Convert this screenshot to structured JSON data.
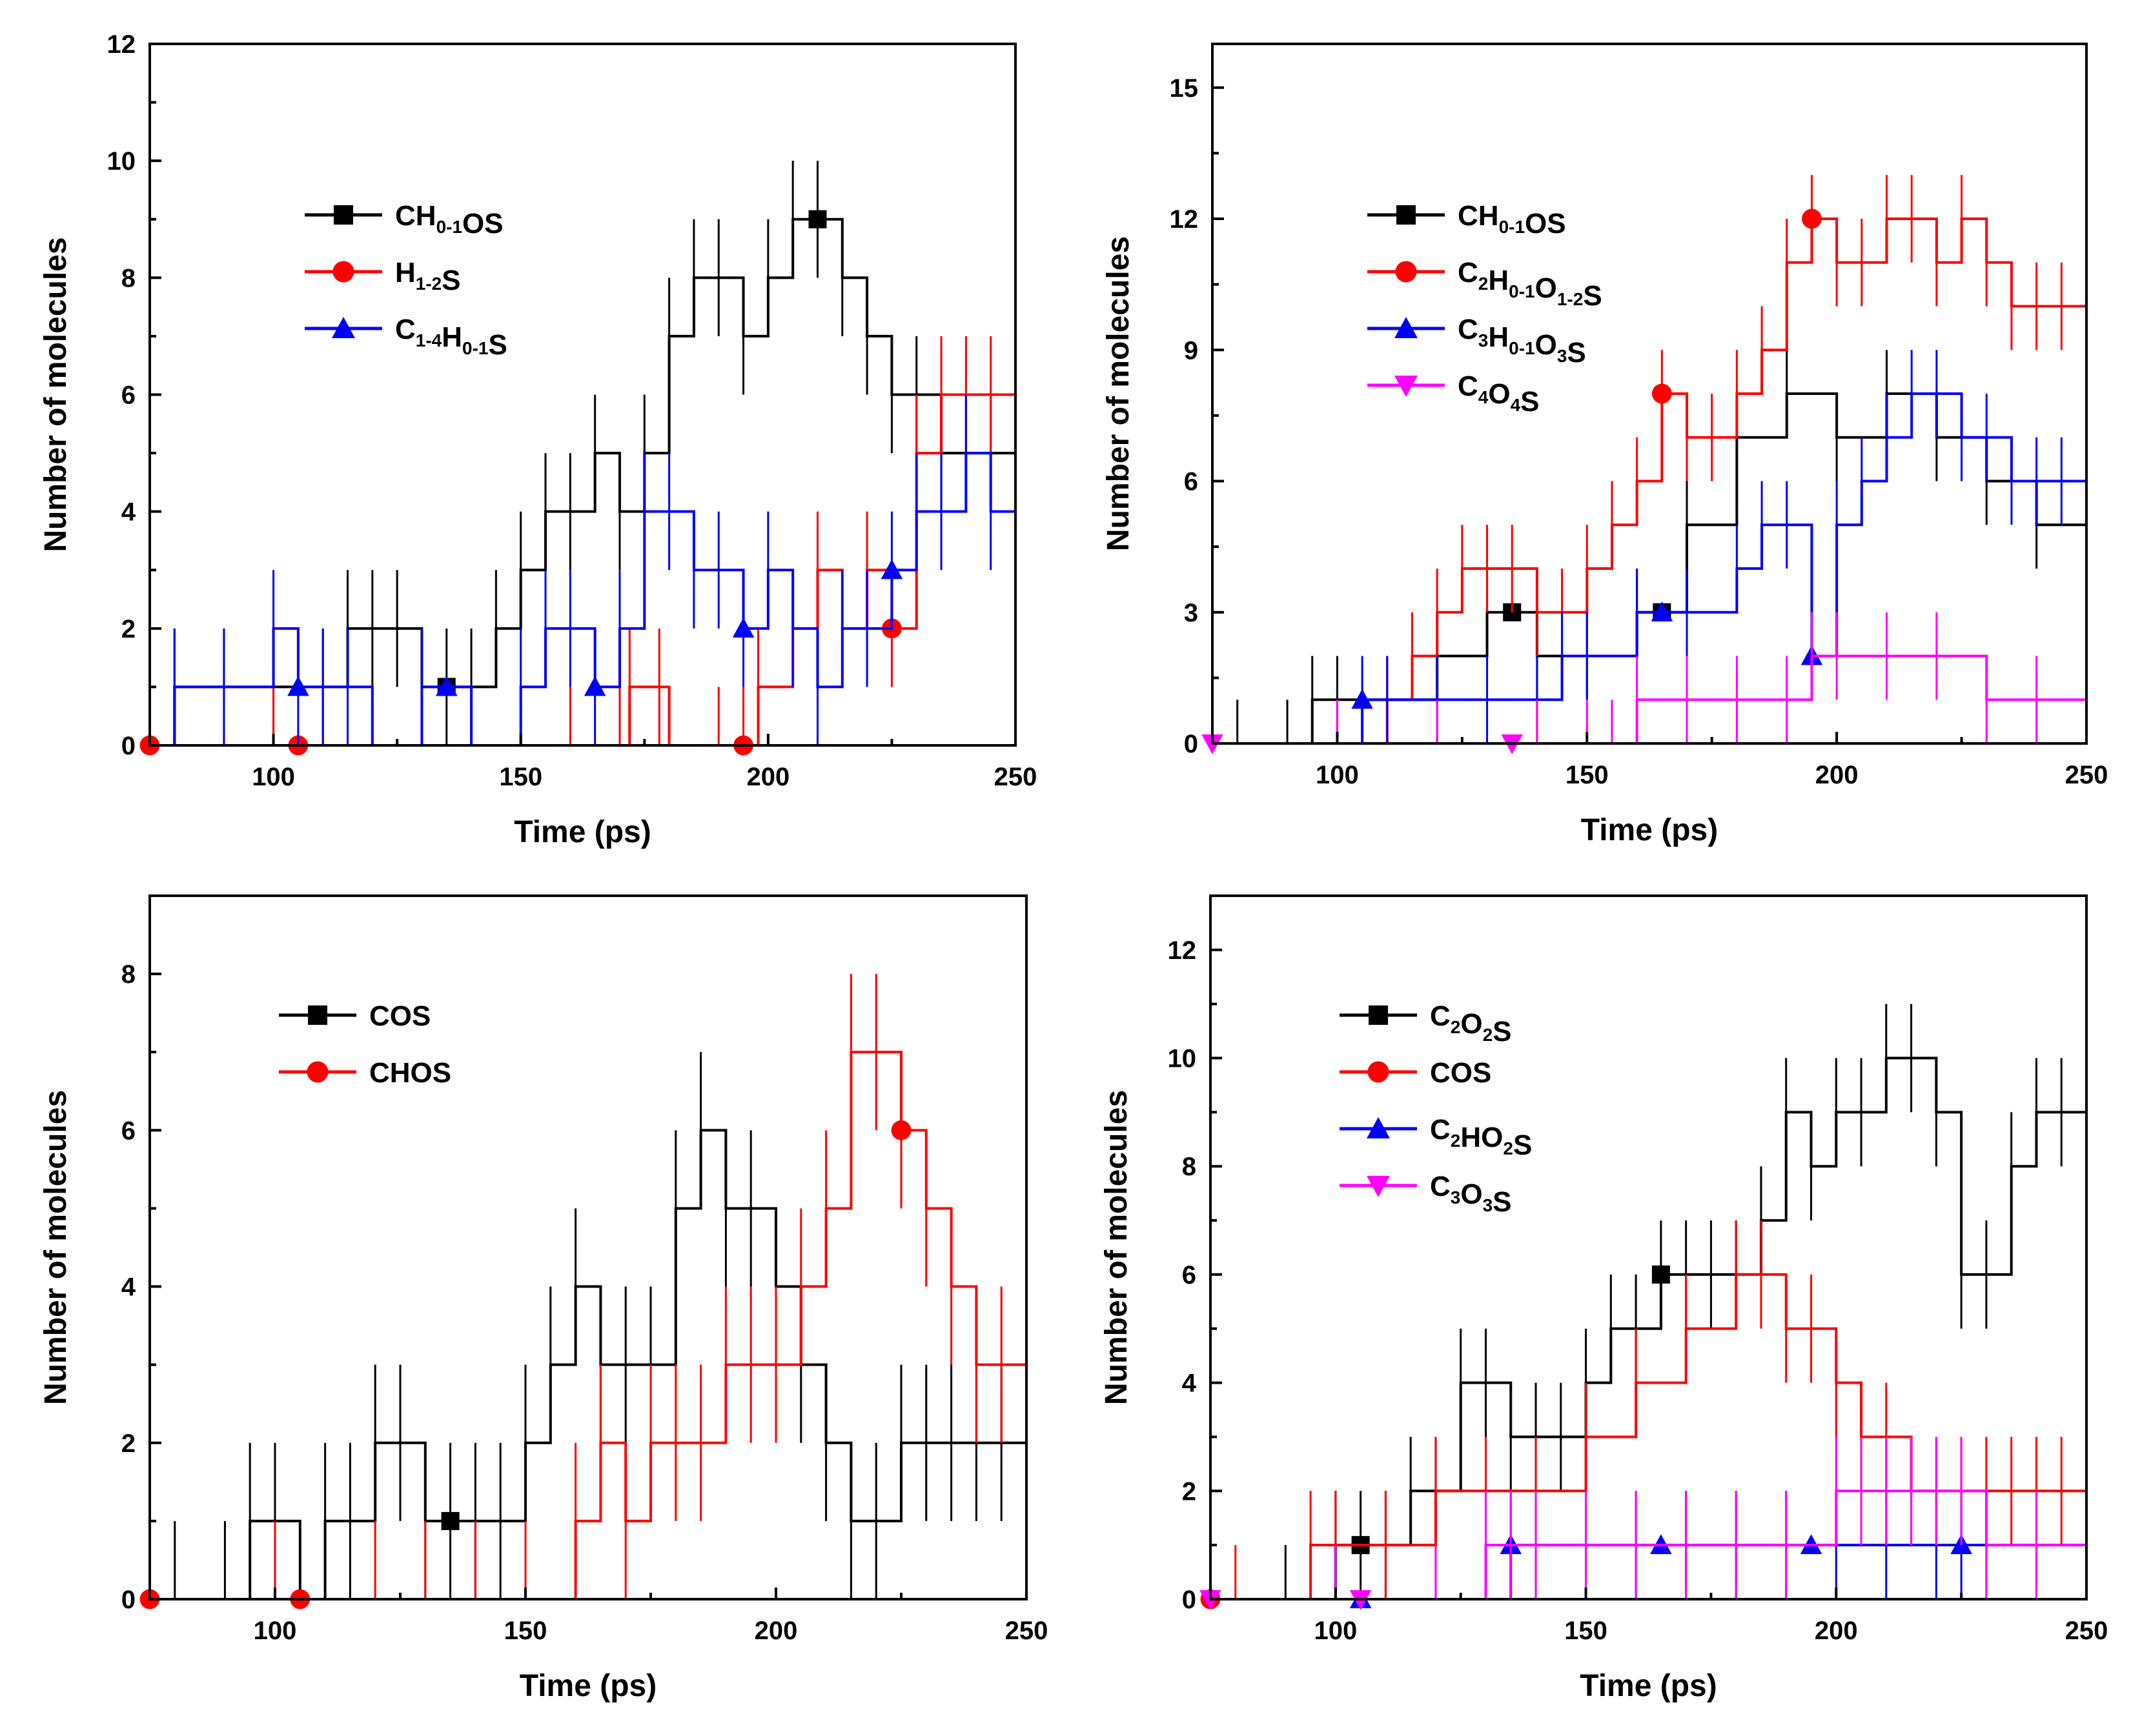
{
  "figure": {
    "description_free": true
  },
  "chart_data": [
    {
      "type": "line",
      "panel": "top-left",
      "xlabel": "Time (ps)",
      "ylabel": "Number of molecules",
      "xlim": [
        75,
        250
      ],
      "ylim": [
        0,
        12
      ],
      "xticks": [
        100,
        150,
        200,
        250
      ],
      "yticks": [
        0,
        2,
        4,
        6,
        8,
        10,
        12
      ],
      "legend_position": "upper-left",
      "series": [
        {
          "name": "CH0-1OS",
          "label_parts": [
            [
              "CH",
              ""
            ],
            [
              "0-1",
              "sub"
            ],
            [
              "OS",
              ""
            ]
          ],
          "color": "#000000",
          "marker": "square",
          "marker_x": [
            135,
            210
          ],
          "x": [
            75,
            80,
            90,
            100,
            110,
            115,
            120,
            125,
            130,
            135,
            140,
            145,
            150,
            155,
            160,
            165,
            170,
            175,
            180,
            185,
            190,
            195,
            200,
            205,
            210,
            215,
            220,
            225,
            230,
            235,
            240,
            245,
            250
          ],
          "y": [
            0,
            1,
            1,
            1,
            1,
            2,
            2,
            2,
            1,
            1,
            1,
            2,
            3,
            4,
            4,
            5,
            4,
            5,
            7,
            8,
            8,
            7,
            8,
            9,
            9,
            8,
            7,
            6,
            6,
            5,
            5,
            5,
            4
          ]
        },
        {
          "name": "H1-2S",
          "label_parts": [
            [
              "H",
              ""
            ],
            [
              "1-2",
              "sub"
            ],
            [
              "S",
              ""
            ]
          ],
          "color": "#ff0000",
          "marker": "circle",
          "marker_x": [
            75,
            105,
            195,
            225
          ],
          "x": [
            75,
            100,
            120,
            140,
            160,
            170,
            172,
            178,
            180,
            190,
            195,
            198,
            205,
            210,
            215,
            220,
            225,
            230,
            235,
            240,
            245,
            250
          ],
          "y": [
            0,
            0,
            0,
            0,
            0,
            0,
            1,
            1,
            0,
            0,
            0,
            1,
            2,
            3,
            2,
            3,
            2,
            5,
            6,
            6,
            6,
            5
          ]
        },
        {
          "name": "C1-4H0-1S",
          "label_parts": [
            [
              "C",
              ""
            ],
            [
              "1-4",
              "sub"
            ],
            [
              "H",
              ""
            ],
            [
              "0-1",
              "sub"
            ],
            [
              "S",
              ""
            ]
          ],
          "color": "#0000ff",
          "marker": "triangle-up",
          "marker_x": [
            105,
            135,
            165,
            195,
            225
          ],
          "x": [
            75,
            80,
            90,
            100,
            105,
            110,
            115,
            120,
            130,
            140,
            150,
            155,
            160,
            165,
            170,
            175,
            180,
            185,
            190,
            195,
            200,
            205,
            210,
            215,
            220,
            225,
            230,
            235,
            240,
            245,
            250
          ],
          "y": [
            0,
            1,
            1,
            2,
            1,
            1,
            1,
            0,
            1,
            0,
            1,
            2,
            2,
            1,
            2,
            4,
            4,
            3,
            3,
            2,
            3,
            2,
            1,
            2,
            2,
            3,
            4,
            4,
            5,
            4,
            4
          ]
        }
      ]
    },
    {
      "type": "line",
      "panel": "top-right",
      "xlabel": "Time (ps)",
      "ylabel": "Number of molecules",
      "xlim": [
        75,
        250
      ],
      "ylim": [
        0,
        16
      ],
      "xticks": [
        100,
        150,
        200,
        250
      ],
      "yticks": [
        0,
        3,
        6,
        9,
        12,
        15
      ],
      "legend_position": "upper-left",
      "series": [
        {
          "name": "CH0-1OS",
          "label_parts": [
            [
              "CH",
              ""
            ],
            [
              "0-1",
              "sub"
            ],
            [
              "OS",
              ""
            ]
          ],
          "color": "#000000",
          "marker": "square",
          "marker_x": [
            135,
            165
          ],
          "x": [
            75,
            80,
            90,
            95,
            100,
            110,
            120,
            130,
            140,
            150,
            160,
            170,
            180,
            190,
            200,
            210,
            220,
            230,
            240,
            250
          ],
          "y": [
            0,
            0,
            0,
            1,
            1,
            1,
            2,
            3,
            2,
            2,
            3,
            5,
            7,
            8,
            7,
            8,
            7,
            6,
            5,
            4
          ]
        },
        {
          "name": "C2H0-1O1-2S",
          "label_parts": [
            [
              "C",
              ""
            ],
            [
              "2",
              "sub"
            ],
            [
              "H",
              ""
            ],
            [
              "0-1",
              "sub"
            ],
            [
              "O",
              ""
            ],
            [
              "1-2",
              "sub"
            ],
            [
              "S",
              ""
            ]
          ],
          "color": "#ff0000",
          "marker": "circle",
          "marker_x": [
            165,
            195
          ],
          "x": [
            75,
            100,
            110,
            115,
            120,
            125,
            130,
            135,
            140,
            145,
            150,
            155,
            160,
            165,
            170,
            175,
            180,
            185,
            190,
            195,
            200,
            205,
            210,
            215,
            220,
            225,
            230,
            235,
            240,
            245,
            250
          ],
          "y": [
            0,
            0,
            1,
            2,
            3,
            4,
            4,
            4,
            3,
            3,
            4,
            5,
            6,
            8,
            7,
            7,
            8,
            9,
            11,
            12,
            11,
            11,
            12,
            12,
            11,
            12,
            11,
            10,
            10,
            10,
            10
          ]
        },
        {
          "name": "C3H0-1O3S",
          "label_parts": [
            [
              "C",
              ""
            ],
            [
              "3",
              "sub"
            ],
            [
              "H",
              ""
            ],
            [
              "0-1",
              "sub"
            ],
            [
              "O",
              ""
            ],
            [
              "3",
              "sub"
            ],
            [
              "S",
              ""
            ]
          ],
          "color": "#0000ff",
          "marker": "triangle-up",
          "marker_x": [
            105,
            165,
            195
          ],
          "x": [
            75,
            100,
            105,
            110,
            120,
            130,
            140,
            145,
            150,
            160,
            170,
            180,
            185,
            190,
            195,
            200,
            205,
            210,
            215,
            220,
            225,
            230,
            235,
            240,
            245,
            250
          ],
          "y": [
            0,
            0,
            1,
            1,
            1,
            1,
            1,
            2,
            2,
            3,
            3,
            4,
            5,
            5,
            2,
            5,
            6,
            7,
            8,
            8,
            7,
            7,
            6,
            6,
            6,
            5
          ]
        },
        {
          "name": "C4O4S",
          "label_parts": [
            [
              "C",
              ""
            ],
            [
              "4",
              "sub"
            ],
            [
              "O",
              ""
            ],
            [
              "4",
              "sub"
            ],
            [
              "S",
              ""
            ]
          ],
          "color": "#ff00ff",
          "marker": "triangle-down",
          "marker_x": [
            75,
            135
          ],
          "x": [
            75,
            100,
            120,
            140,
            150,
            155,
            160,
            170,
            180,
            190,
            195,
            200,
            210,
            220,
            230,
            240,
            250
          ],
          "y": [
            0,
            0,
            0,
            0,
            0,
            0,
            1,
            1,
            1,
            1,
            2,
            2,
            2,
            2,
            1,
            1,
            1
          ]
        }
      ]
    },
    {
      "type": "line",
      "panel": "bottom-left",
      "xlabel": "Time (ps)",
      "ylabel": "Number of molecules",
      "xlim": [
        75,
        250
      ],
      "ylim": [
        0,
        9
      ],
      "xticks": [
        100,
        150,
        200,
        250
      ],
      "yticks": [
        0,
        2,
        4,
        6,
        8
      ],
      "legend_position": "upper-left",
      "series": [
        {
          "name": "COS",
          "label_parts": [
            [
              "COS",
              ""
            ]
          ],
          "color": "#000000",
          "marker": "square",
          "marker_x": [
            135
          ],
          "x": [
            75,
            80,
            90,
            95,
            100,
            105,
            110,
            115,
            120,
            125,
            130,
            135,
            140,
            145,
            150,
            155,
            160,
            165,
            170,
            175,
            180,
            185,
            190,
            195,
            200,
            205,
            210,
            215,
            220,
            225,
            230,
            235,
            240,
            245,
            250
          ],
          "y": [
            0,
            0,
            0,
            1,
            1,
            0,
            1,
            1,
            2,
            2,
            1,
            1,
            1,
            1,
            2,
            3,
            4,
            3,
            3,
            3,
            5,
            6,
            5,
            5,
            4,
            3,
            2,
            1,
            1,
            2,
            2,
            2,
            2,
            2,
            1
          ]
        },
        {
          "name": "CHOS",
          "label_parts": [
            [
              "CHOS",
              ""
            ]
          ],
          "color": "#ff0000",
          "marker": "circle",
          "marker_x": [
            75,
            105,
            225
          ],
          "x": [
            75,
            100,
            120,
            130,
            140,
            150,
            160,
            165,
            170,
            175,
            180,
            185,
            190,
            195,
            200,
            205,
            210,
            215,
            220,
            225,
            230,
            235,
            240,
            245,
            250
          ],
          "y": [
            0,
            0,
            0,
            0,
            0,
            0,
            1,
            2,
            1,
            2,
            2,
            2,
            3,
            3,
            3,
            4,
            5,
            7,
            7,
            6,
            5,
            4,
            3,
            3,
            3
          ]
        }
      ]
    },
    {
      "type": "line",
      "panel": "bottom-right",
      "xlabel": "Time (ps)",
      "ylabel": "Number of molecules",
      "xlim": [
        75,
        250
      ],
      "ylim": [
        0,
        13
      ],
      "xticks": [
        100,
        150,
        200,
        250
      ],
      "yticks": [
        0,
        2,
        4,
        6,
        8,
        10,
        12
      ],
      "legend_position": "upper-left",
      "series": [
        {
          "name": "C2O2S",
          "label_parts": [
            [
              "C",
              ""
            ],
            [
              "2",
              "sub"
            ],
            [
              "O",
              ""
            ],
            [
              "2",
              "sub"
            ],
            [
              "S",
              ""
            ]
          ],
          "color": "#000000",
          "marker": "square",
          "marker_x": [
            105,
            165
          ],
          "x": [
            75,
            90,
            100,
            105,
            110,
            115,
            120,
            125,
            130,
            135,
            140,
            145,
            150,
            155,
            160,
            165,
            170,
            175,
            180,
            185,
            190,
            195,
            200,
            205,
            210,
            215,
            220,
            225,
            230,
            235,
            240,
            245,
            250
          ],
          "y": [
            0,
            0,
            1,
            1,
            1,
            2,
            2,
            4,
            4,
            3,
            3,
            3,
            4,
            5,
            5,
            6,
            6,
            6,
            6,
            7,
            9,
            8,
            9,
            9,
            10,
            10,
            9,
            6,
            6,
            8,
            9,
            9,
            9
          ]
        },
        {
          "name": "COS",
          "label_parts": [
            [
              "COS",
              ""
            ]
          ],
          "color": "#ff0000",
          "marker": "circle",
          "marker_x": [
            75
          ],
          "x": [
            75,
            80,
            95,
            100,
            110,
            120,
            130,
            140,
            150,
            160,
            170,
            180,
            185,
            190,
            195,
            200,
            205,
            210,
            215,
            220,
            225,
            230,
            235,
            240,
            245,
            250
          ],
          "y": [
            0,
            0,
            1,
            1,
            1,
            2,
            2,
            2,
            3,
            4,
            5,
            6,
            6,
            5,
            5,
            4,
            3,
            3,
            2,
            2,
            2,
            2,
            2,
            2,
            2,
            2
          ]
        },
        {
          "name": "C2HO2S",
          "label_parts": [
            [
              "C",
              ""
            ],
            [
              "2",
              "sub"
            ],
            [
              "HO",
              ""
            ],
            [
              "2",
              "sub"
            ],
            [
              "S",
              ""
            ]
          ],
          "color": "#0000ff",
          "marker": "triangle-up",
          "marker_x": [
            105,
            135,
            165,
            195,
            225
          ],
          "x": [
            75,
            100,
            120,
            135,
            140,
            150,
            160,
            170,
            180,
            190,
            200,
            210,
            220,
            225,
            230,
            240,
            250
          ],
          "y": [
            0,
            0,
            0,
            1,
            1,
            1,
            1,
            1,
            1,
            1,
            1,
            1,
            1,
            1,
            1,
            1,
            1
          ]
        },
        {
          "name": "C3O3S",
          "label_parts": [
            [
              "C",
              ""
            ],
            [
              "3",
              "sub"
            ],
            [
              "O",
              ""
            ],
            [
              "3",
              "sub"
            ],
            [
              "S",
              ""
            ]
          ],
          "color": "#ff00ff",
          "marker": "triangle-down",
          "marker_x": [
            75,
            105
          ],
          "x": [
            75,
            100,
            120,
            130,
            135,
            140,
            150,
            160,
            170,
            180,
            190,
            200,
            205,
            210,
            215,
            220,
            225,
            230,
            240,
            250
          ],
          "y": [
            0,
            0,
            0,
            1,
            1,
            1,
            1,
            1,
            1,
            1,
            1,
            2,
            2,
            2,
            2,
            2,
            2,
            1,
            1,
            1
          ]
        }
      ]
    }
  ]
}
